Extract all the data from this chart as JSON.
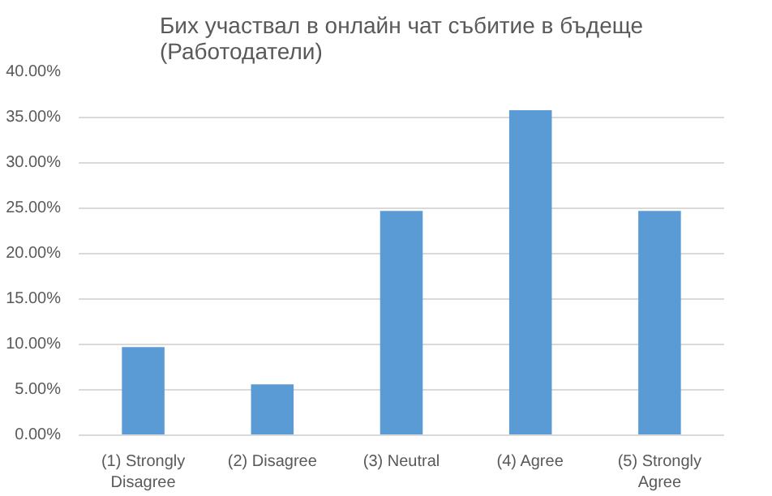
{
  "chart_data": {
    "type": "bar",
    "title": "Бих участвал в онлайн чат събитие в бъдеще (Работодатели)",
    "categories": [
      "(1) Strongly Disagree",
      "(2) Disagree",
      "(3) Neutral",
      "(4) Agree",
      "(5) Strongly Agree"
    ],
    "values": [
      9.7,
      5.6,
      24.7,
      35.8,
      24.7
    ],
    "color": "#5b9bd5",
    "ylim": [
      0,
      40
    ],
    "yticks": [
      {
        "value": 0,
        "label": "0.00%"
      },
      {
        "value": 5,
        "label": "5.00%"
      },
      {
        "value": 10,
        "label": "10.00%"
      },
      {
        "value": 15,
        "label": "15.00%"
      },
      {
        "value": 20,
        "label": "20.00%"
      },
      {
        "value": 25,
        "label": "25.00%"
      },
      {
        "value": 30,
        "label": "30.00%"
      },
      {
        "value": 35,
        "label": "35.00%"
      },
      {
        "value": 40,
        "label": "40.00%"
      }
    ],
    "grid": "y"
  }
}
